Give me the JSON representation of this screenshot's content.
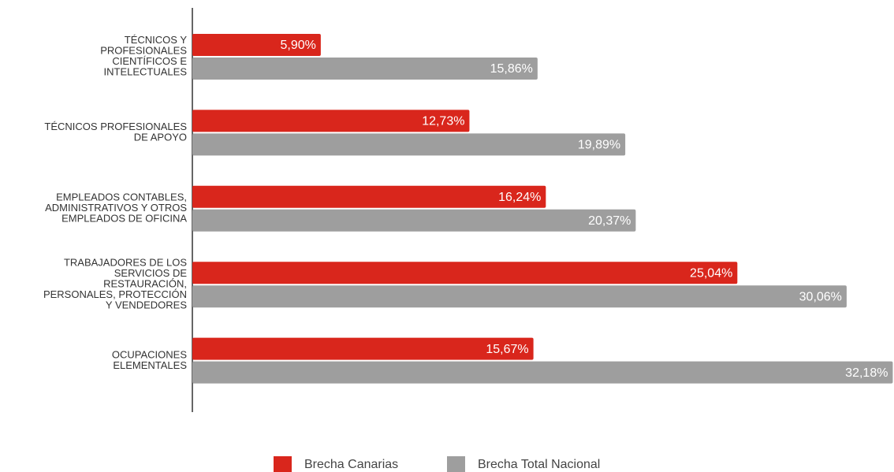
{
  "chart_data": {
    "type": "hbar",
    "categories": [
      [
        "TÉCNICOS Y",
        "PROFESIONALES",
        "CIENTÍFICOS E",
        "INTELECTUALES"
      ],
      [
        "TÉCNICOS PROFESIONALES",
        "DE APOYO"
      ],
      [
        "EMPLEADOS CONTABLES,",
        "ADMINISTRATIVOS Y OTROS",
        "EMPLEADOS DE OFICINA"
      ],
      [
        "TRABAJADORES DE LOS",
        "SERVICIOS DE",
        "RESTAURACIÓN,",
        "PERSONALES, PROTECCIÓN",
        "Y VENDEDORES"
      ],
      [
        "OCUPACIONES",
        "ELEMENTALES"
      ]
    ],
    "series": [
      {
        "name": "Brecha Canarias",
        "color": "#d9261c",
        "values": [
          5.9,
          12.73,
          16.24,
          25.04,
          15.67
        ],
        "value_labels": [
          "5,90%",
          "12,73%",
          "16,24%",
          "25,04%",
          "15,67%"
        ]
      },
      {
        "name": "Brecha Total Nacional",
        "color": "#9e9e9e",
        "values": [
          15.86,
          19.89,
          20.37,
          30.06,
          32.18
        ],
        "value_labels": [
          "15,86%",
          "19,89%",
          "20,37%",
          "30,06%",
          "32,18%"
        ]
      }
    ],
    "xlim": [
      0,
      32.2
    ],
    "legend": "bottom"
  }
}
